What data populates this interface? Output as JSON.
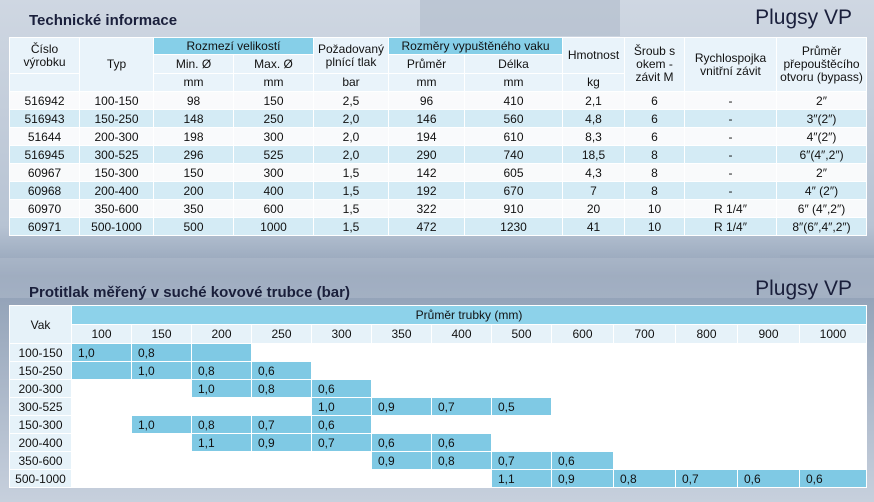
{
  "section1": {
    "title": "Technické informace",
    "brand": "Plugsy VP",
    "headers": {
      "cislo": "Číslo výrobku",
      "typ": "Typ",
      "rozmezi": "Rozmezí velikostí",
      "min": "Min. Ø",
      "max": "Max. Ø",
      "tlak": "Požadovaný plnící tlak",
      "rozmery": "Rozměry vypuštěného vaku",
      "prumer": "Průměr",
      "delka": "Délka",
      "hmotnost": "Hmotnost",
      "sroub": "Šroub s okem - závit M",
      "rychlo": "Rychlospojka vnitřní závit",
      "bypass": "Průměr přepouštěcího otvoru (bypass)"
    },
    "units": {
      "min": "mm",
      "max": "mm",
      "tlak": "bar",
      "prumer": "mm",
      "delka": "mm",
      "hmotnost": "kg"
    },
    "rows": [
      [
        "516942",
        "100-150",
        "98",
        "150",
        "2,5",
        "96",
        "410",
        "2,1",
        "6",
        "-",
        "2″"
      ],
      [
        "516943",
        "150-250",
        "148",
        "250",
        "2,0",
        "146",
        "560",
        "4,8",
        "6",
        "-",
        "3″(2″)"
      ],
      [
        "51644",
        "200-300",
        "198",
        "300",
        "2,0",
        "194",
        "610",
        "8,3",
        "6",
        "-",
        "4″(2″)"
      ],
      [
        "516945",
        "300-525",
        "296",
        "525",
        "2,0",
        "290",
        "740",
        "18,5",
        "8",
        "-",
        "6″(4″,2″)"
      ],
      [
        "60967",
        "150-300",
        "150",
        "300",
        "1,5",
        "142",
        "605",
        "4,3",
        "8",
        "-",
        "2″"
      ],
      [
        "60968",
        "200-400",
        "200",
        "400",
        "1,5",
        "192",
        "670",
        "7",
        "8",
        "-",
        "4″ (2″)"
      ],
      [
        "60970",
        "350-600",
        "350",
        "600",
        "1,5",
        "322",
        "910",
        "20",
        "10",
        "R 1/4″",
        "6″ (4″,2″)"
      ],
      [
        "60971",
        "500-1000",
        "500",
        "1000",
        "1,5",
        "472",
        "1230",
        "41",
        "10",
        "R 1/4″",
        "8″(6″,4″,2″)"
      ]
    ]
  },
  "section2": {
    "title": "Protitlak měřený v suché kovové trubce (bar)",
    "brand": "Plugsy VP",
    "vak_label": "Vak",
    "prumer_label": "Průměr trubky (mm)",
    "columns": [
      "100",
      "150",
      "200",
      "250",
      "300",
      "350",
      "400",
      "500",
      "600",
      "700",
      "800",
      "900",
      "1000"
    ],
    "rows": [
      {
        "vak": "100-150",
        "cells": [
          "1,0",
          "0,8",
          "",
          "",
          "",
          "",
          "",
          "",
          "",
          "",
          "",
          "",
          ""
        ],
        "filled": [
          1,
          1,
          1,
          0,
          0,
          0,
          0,
          0,
          0,
          0,
          0,
          0,
          0
        ]
      },
      {
        "vak": "150-250",
        "cells": [
          "",
          "1,0",
          "0,8",
          "0,6",
          "",
          "",
          "",
          "",
          "",
          "",
          "",
          "",
          ""
        ],
        "filled": [
          1,
          1,
          1,
          1,
          0,
          0,
          0,
          0,
          0,
          0,
          0,
          0,
          0
        ]
      },
      {
        "vak": "200-300",
        "cells": [
          "",
          "",
          "1,0",
          "0,8",
          "0,6",
          "",
          "",
          "",
          "",
          "",
          "",
          "",
          ""
        ],
        "filled": [
          0,
          0,
          1,
          1,
          1,
          0,
          0,
          0,
          0,
          0,
          0,
          0,
          0
        ]
      },
      {
        "vak": "300-525",
        "cells": [
          "",
          "",
          "",
          "",
          "1,0",
          "0,9",
          "0,7",
          "0,5",
          "",
          "",
          "",
          "",
          ""
        ],
        "filled": [
          0,
          0,
          0,
          0,
          1,
          1,
          1,
          1,
          0,
          0,
          0,
          0,
          0
        ]
      },
      {
        "vak": "150-300",
        "cells": [
          "",
          "1,0",
          "0,8",
          "0,7",
          "0,6",
          "",
          "",
          "",
          "",
          "",
          "",
          "",
          ""
        ],
        "filled": [
          0,
          1,
          1,
          1,
          1,
          0,
          0,
          0,
          0,
          0,
          0,
          0,
          0
        ]
      },
      {
        "vak": "200-400",
        "cells": [
          "",
          "",
          "1,1",
          "0,9",
          "0,7",
          "0,6",
          "0,6",
          "",
          "",
          "",
          "",
          "",
          ""
        ],
        "filled": [
          0,
          0,
          1,
          1,
          1,
          1,
          1,
          0,
          0,
          0,
          0,
          0,
          0
        ]
      },
      {
        "vak": "350-600",
        "cells": [
          "",
          "",
          "",
          "",
          "",
          "0,9",
          "0,8",
          "0,7",
          "0,6",
          "",
          "",
          "",
          ""
        ],
        "filled": [
          0,
          0,
          0,
          0,
          0,
          1,
          1,
          1,
          1,
          0,
          0,
          0,
          0
        ]
      },
      {
        "vak": "500-1000",
        "cells": [
          "",
          "",
          "",
          "",
          "",
          "",
          "",
          "1,1",
          "0,9",
          "0,8",
          "0,7",
          "0,6",
          "0,6"
        ],
        "filled": [
          0,
          0,
          0,
          0,
          0,
          0,
          0,
          1,
          1,
          1,
          1,
          1,
          1
        ]
      }
    ]
  }
}
